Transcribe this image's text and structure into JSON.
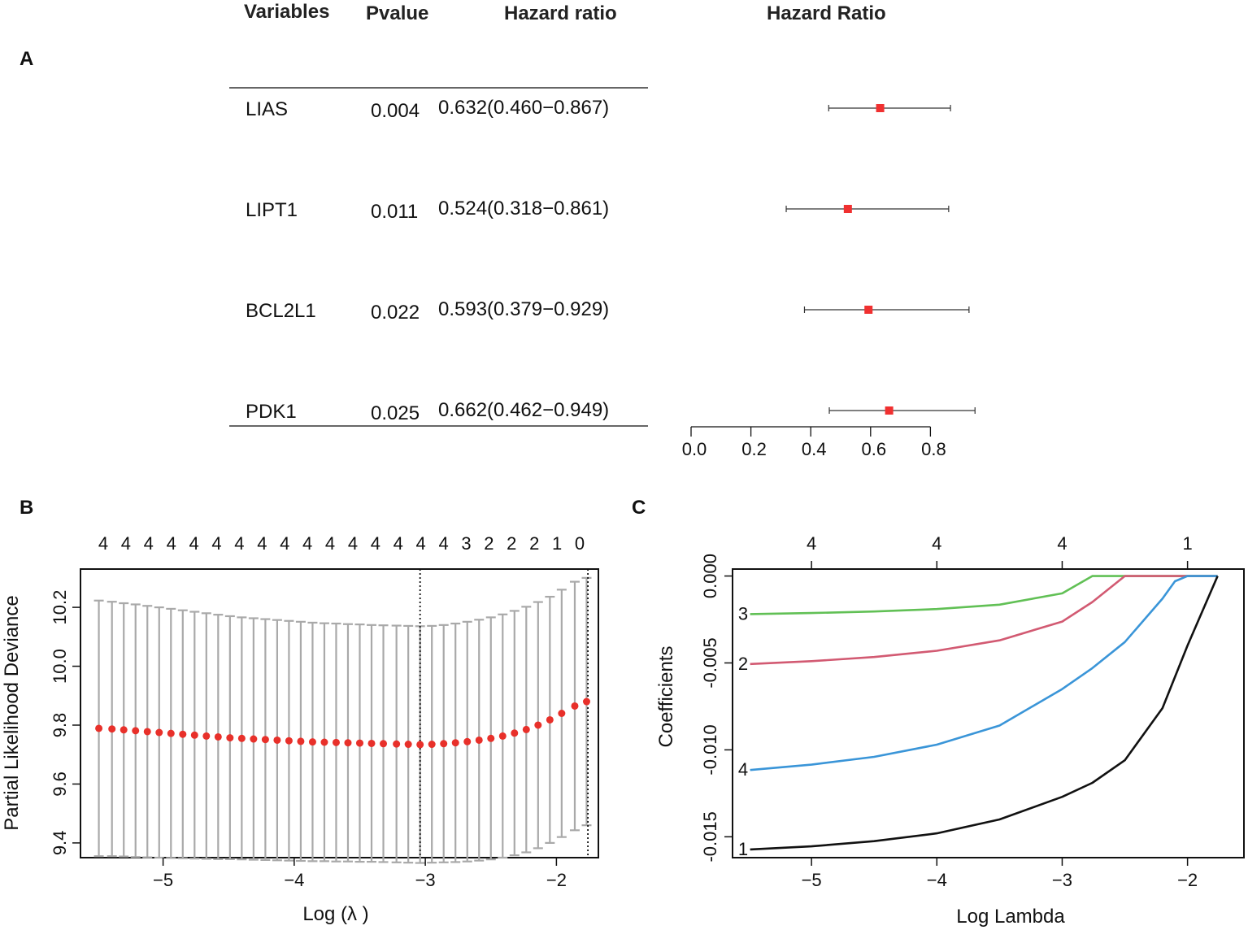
{
  "panels": {
    "a": "A",
    "b": "B",
    "c": "C"
  },
  "chart_data": [
    {
      "type": "forest",
      "title": "Hazard Ratio",
      "columns": {
        "variable": "Variables",
        "pvalue": "Pvalue",
        "hr": "Hazard ratio"
      },
      "rows": [
        {
          "variable": "LIAS",
          "pvalue": "0.004",
          "hr_text": "0.632(0.460−0.867)",
          "hr": 0.632,
          "lo": 0.46,
          "hi": 0.867
        },
        {
          "variable": "LIPT1",
          "pvalue": "0.011",
          "hr_text": "0.524(0.318−0.861)",
          "hr": 0.524,
          "lo": 0.318,
          "hi": 0.861
        },
        {
          "variable": "BCL2L1",
          "pvalue": "0.022",
          "hr_text": "0.593(0.379−0.929)",
          "hr": 0.593,
          "lo": 0.379,
          "hi": 0.929
        },
        {
          "variable": "PDK1",
          "pvalue": "0.025",
          "hr_text": "0.662(0.462−0.949)",
          "hr": 0.662,
          "lo": 0.462,
          "hi": 0.949
        }
      ],
      "xticks": [
        "0.0",
        "0.2",
        "0.4",
        "0.6",
        "0.8"
      ],
      "point_color": "#f03030"
    },
    {
      "type": "errorbar",
      "xlabel": "Log  (λ   )",
      "ylabel": "Partial Likelihood Deviance",
      "xlim": [
        -5.63,
        -1.68
      ],
      "ylim": [
        9.35,
        10.33
      ],
      "xticks": [
        "−5",
        "−4",
        "−3",
        "−2"
      ],
      "yticks": [
        "9.4",
        "9.6",
        "9.8",
        "10.0",
        "10.2"
      ],
      "top_ticks": [
        "4",
        "4",
        "4",
        "4",
        "4",
        "4",
        "4",
        "4",
        "4",
        "4",
        "4",
        "4",
        "4",
        "4",
        "4",
        "4",
        "3",
        "2",
        "2",
        "2",
        "1",
        "0"
      ],
      "vlines": [
        -3.04,
        -1.76
      ],
      "points": [
        {
          "x": -5.49,
          "y": 9.789,
          "lo": 9.355,
          "hi": 10.223
        },
        {
          "x": -5.39,
          "y": 9.787,
          "lo": 9.355,
          "hi": 10.219
        },
        {
          "x": -5.3,
          "y": 9.784,
          "lo": 9.354,
          "hi": 10.214
        },
        {
          "x": -5.21,
          "y": 9.781,
          "lo": 9.352,
          "hi": 10.21
        },
        {
          "x": -5.12,
          "y": 9.778,
          "lo": 9.351,
          "hi": 10.205
        },
        {
          "x": -5.03,
          "y": 9.775,
          "lo": 9.35,
          "hi": 10.2
        },
        {
          "x": -4.94,
          "y": 9.772,
          "lo": 9.349,
          "hi": 10.195
        },
        {
          "x": -4.85,
          "y": 9.769,
          "lo": 9.348,
          "hi": 10.19
        },
        {
          "x": -4.76,
          "y": 9.766,
          "lo": 9.347,
          "hi": 10.185
        },
        {
          "x": -4.67,
          "y": 9.763,
          "lo": 9.346,
          "hi": 10.18
        },
        {
          "x": -4.58,
          "y": 9.76,
          "lo": 9.345,
          "hi": 10.175
        },
        {
          "x": -4.49,
          "y": 9.757,
          "lo": 9.345,
          "hi": 10.17
        },
        {
          "x": -4.4,
          "y": 9.755,
          "lo": 9.344,
          "hi": 10.166
        },
        {
          "x": -4.31,
          "y": 9.753,
          "lo": 9.343,
          "hi": 10.163
        },
        {
          "x": -4.22,
          "y": 9.751,
          "lo": 9.342,
          "hi": 10.16
        },
        {
          "x": -4.13,
          "y": 9.749,
          "lo": 9.341,
          "hi": 10.157
        },
        {
          "x": -4.04,
          "y": 9.747,
          "lo": 9.34,
          "hi": 10.154
        },
        {
          "x": -3.95,
          "y": 9.745,
          "lo": 9.339,
          "hi": 10.151
        },
        {
          "x": -3.86,
          "y": 9.743,
          "lo": 9.338,
          "hi": 10.148
        },
        {
          "x": -3.77,
          "y": 9.742,
          "lo": 9.338,
          "hi": 10.146
        },
        {
          "x": -3.68,
          "y": 9.741,
          "lo": 9.337,
          "hi": 10.145
        },
        {
          "x": -3.59,
          "y": 9.74,
          "lo": 9.337,
          "hi": 10.143
        },
        {
          "x": -3.5,
          "y": 9.739,
          "lo": 9.336,
          "hi": 10.142
        },
        {
          "x": -3.41,
          "y": 9.738,
          "lo": 9.336,
          "hi": 10.14
        },
        {
          "x": -3.32,
          "y": 9.737,
          "lo": 9.335,
          "hi": 10.139
        },
        {
          "x": -3.22,
          "y": 9.736,
          "lo": 9.334,
          "hi": 10.138
        },
        {
          "x": -3.13,
          "y": 9.735,
          "lo": 9.333,
          "hi": 10.137
        },
        {
          "x": -3.04,
          "y": 9.734,
          "lo": 9.332,
          "hi": 10.136
        },
        {
          "x": -2.95,
          "y": 9.735,
          "lo": 9.333,
          "hi": 10.137
        },
        {
          "x": -2.86,
          "y": 9.737,
          "lo": 9.334,
          "hi": 10.14
        },
        {
          "x": -2.77,
          "y": 9.74,
          "lo": 9.335,
          "hi": 10.145
        },
        {
          "x": -2.68,
          "y": 9.744,
          "lo": 9.337,
          "hi": 10.151
        },
        {
          "x": -2.59,
          "y": 9.749,
          "lo": 9.34,
          "hi": 10.158
        },
        {
          "x": -2.5,
          "y": 9.755,
          "lo": 9.344,
          "hi": 10.166
        },
        {
          "x": -2.41,
          "y": 9.763,
          "lo": 9.35,
          "hi": 10.176
        },
        {
          "x": -2.32,
          "y": 9.773,
          "lo": 9.358,
          "hi": 10.188
        },
        {
          "x": -2.23,
          "y": 9.785,
          "lo": 9.368,
          "hi": 10.202
        },
        {
          "x": -2.14,
          "y": 9.8,
          "lo": 9.382,
          "hi": 10.218
        },
        {
          "x": -2.05,
          "y": 9.818,
          "lo": 9.4,
          "hi": 10.236
        },
        {
          "x": -1.96,
          "y": 9.84,
          "lo": 9.42,
          "hi": 10.26
        },
        {
          "x": -1.86,
          "y": 9.865,
          "lo": 9.443,
          "hi": 10.287
        },
        {
          "x": -1.77,
          "y": 9.88,
          "lo": 9.46,
          "hi": 10.3
        }
      ],
      "point_color": "#e8302a",
      "bar_color": "#a9a9a9"
    },
    {
      "type": "line",
      "xlabel": "Log Lambda",
      "ylabel": "Coefficients",
      "xlim": [
        -5.63,
        -1.55
      ],
      "ylim": [
        -0.0162,
        0.0004
      ],
      "xticks": [
        "−5",
        "−4",
        "−3",
        "−2"
      ],
      "yticks": [
        "0.000",
        "-0.005",
        "-0.010",
        "-0.015"
      ],
      "top_ticks": [
        "4",
        "4",
        "4",
        "1"
      ],
      "series": [
        {
          "name": "3",
          "color": "#61c055",
          "x": [
            -5.49,
            -5.0,
            -4.5,
            -4.0,
            -3.5,
            -3.0,
            -2.76,
            -2.5,
            -1.76
          ],
          "y": [
            -0.00219,
            -0.00213,
            -0.00204,
            -0.0019,
            -0.00165,
            -0.001,
            0.0,
            0.0,
            0.0
          ]
        },
        {
          "name": "2",
          "color": "#d25a72",
          "x": [
            -5.49,
            -5.0,
            -4.5,
            -4.0,
            -3.5,
            -3.0,
            -2.76,
            -2.5,
            -1.76
          ],
          "y": [
            -0.00506,
            -0.0049,
            -0.00466,
            -0.0043,
            -0.0037,
            -0.00262,
            -0.0015,
            0.0,
            0.0
          ]
        },
        {
          "name": "4",
          "color": "#3a95d8",
          "x": [
            -5.49,
            -5.0,
            -4.5,
            -4.0,
            -3.5,
            -3.0,
            -2.76,
            -2.5,
            -2.2,
            -2.1,
            -2.0,
            -1.76
          ],
          "y": [
            -0.01116,
            -0.01085,
            -0.0104,
            -0.0097,
            -0.0086,
            -0.0065,
            -0.0053,
            -0.0038,
            -0.0013,
            -0.0003,
            0.0,
            0.0
          ]
        },
        {
          "name": "1",
          "color": "#111111",
          "x": [
            -5.49,
            -5.0,
            -4.5,
            -4.0,
            -3.5,
            -3.0,
            -2.76,
            -2.5,
            -2.2,
            -2.0,
            -1.76
          ],
          "y": [
            -0.01573,
            -0.01555,
            -0.01525,
            -0.0148,
            -0.014,
            -0.0127,
            -0.0119,
            -0.0106,
            -0.0076,
            -0.004,
            0.0
          ]
        }
      ]
    }
  ]
}
